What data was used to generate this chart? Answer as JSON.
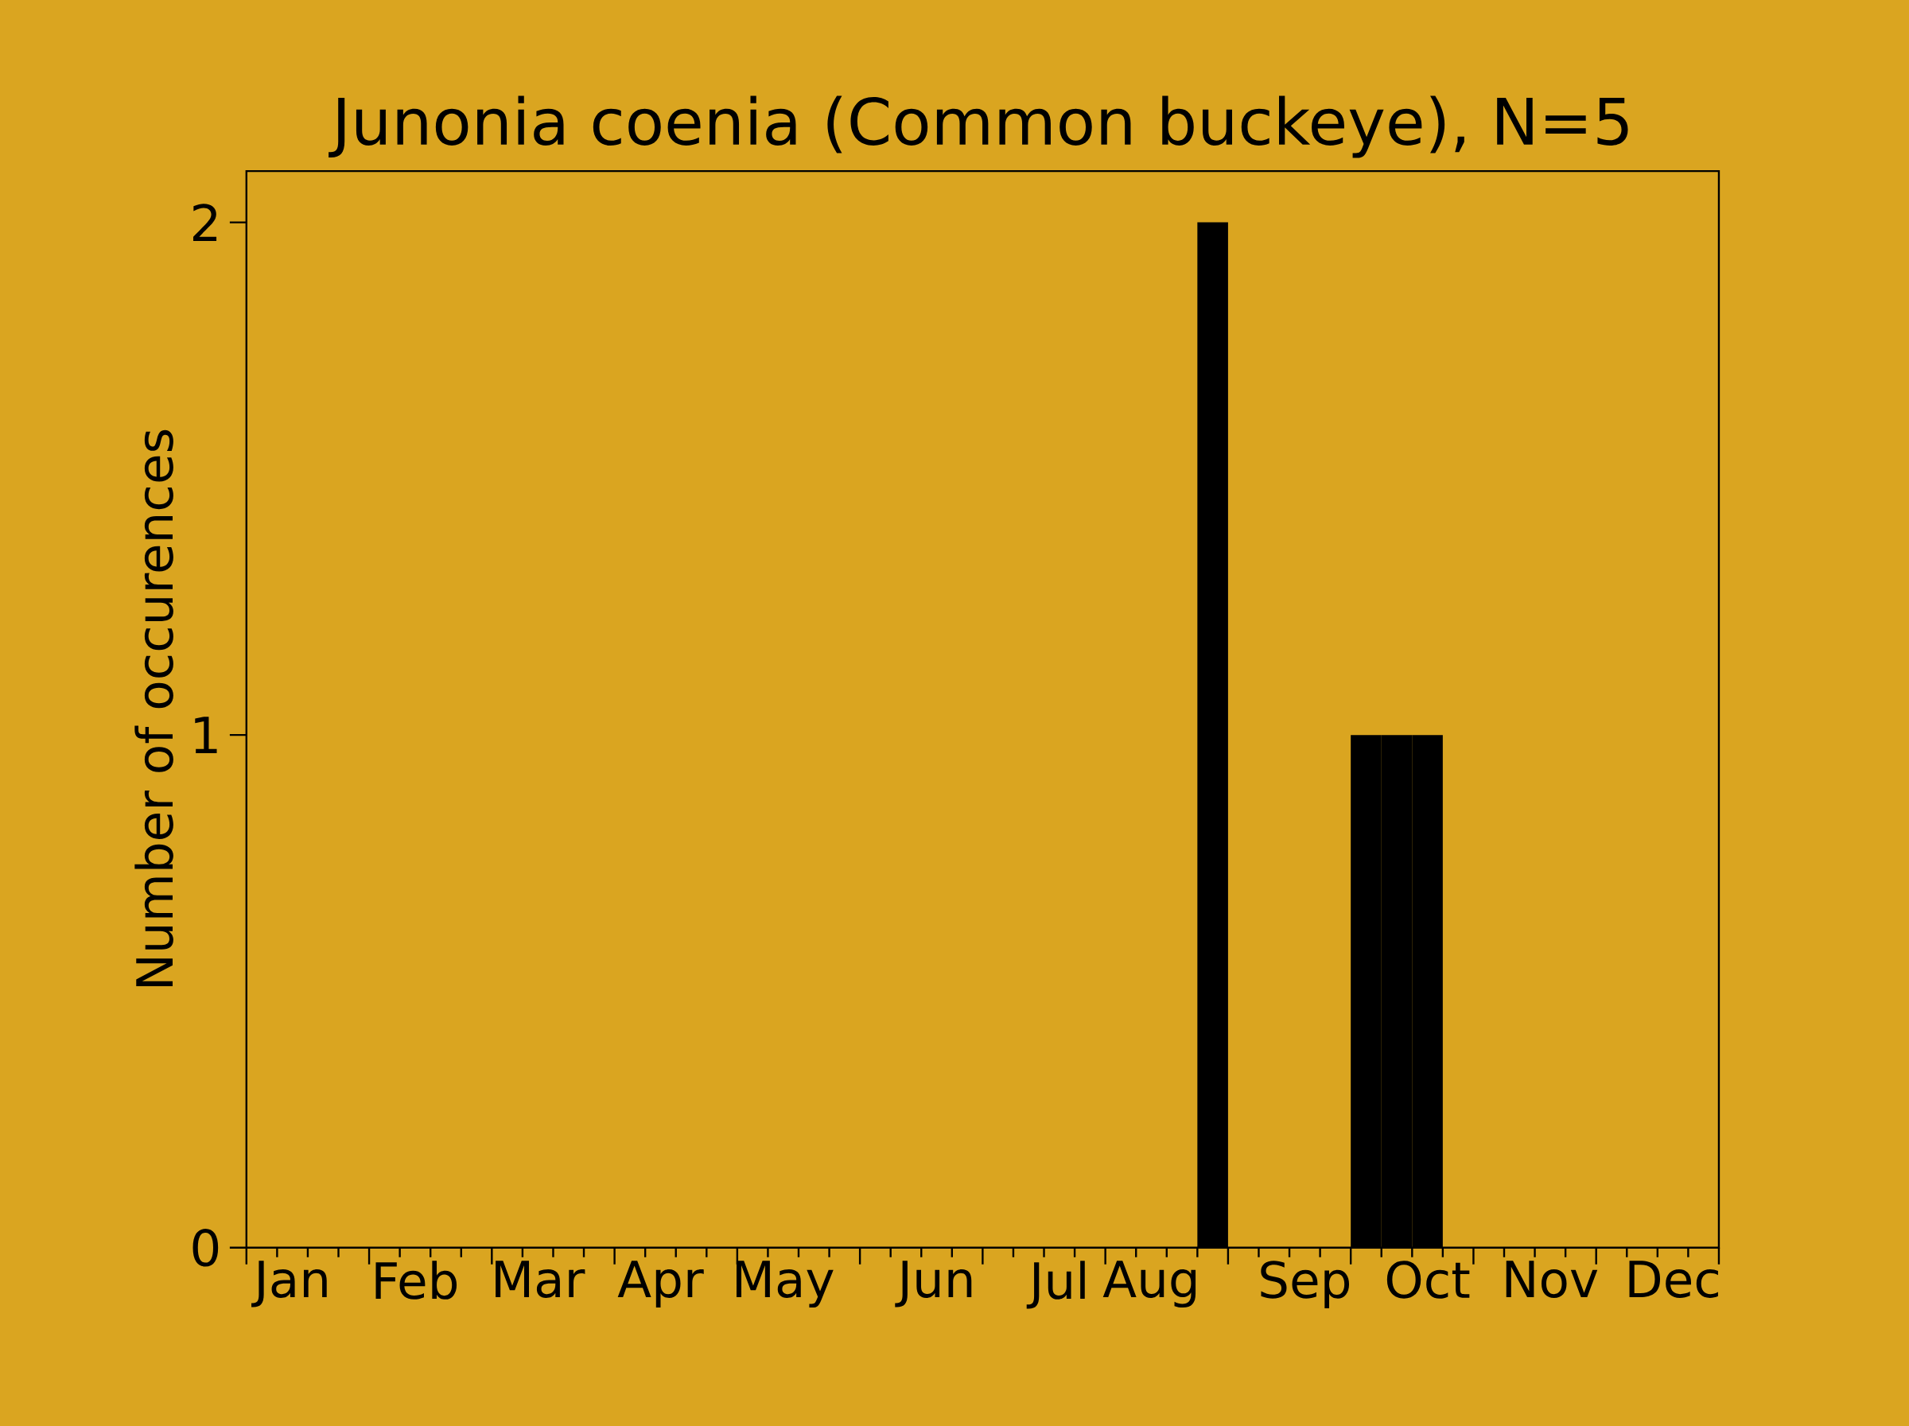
{
  "chart_data": {
    "type": "bar",
    "title": "Junonia coenia (Common buckeye), N=5",
    "ylabel": "Number of occurences",
    "categories": [
      null,
      "Jan",
      null,
      null,
      null,
      "Feb",
      null,
      null,
      null,
      "Mar",
      null,
      null,
      null,
      "Apr",
      null,
      null,
      null,
      "May",
      null,
      null,
      null,
      null,
      "Jun",
      null,
      null,
      null,
      "Jul",
      null,
      null,
      "Aug",
      null,
      null,
      null,
      null,
      "Sep",
      null,
      null,
      null,
      "Oct",
      null,
      null,
      null,
      "Nov",
      null,
      null,
      null,
      "Dec",
      null
    ],
    "values": [
      0,
      0,
      0,
      0,
      0,
      0,
      0,
      0,
      0,
      0,
      0,
      0,
      0,
      0,
      0,
      0,
      0,
      0,
      0,
      0,
      0,
      0,
      0,
      0,
      0,
      0,
      0,
      0,
      0,
      0,
      0,
      2,
      0,
      0,
      0,
      0,
      1,
      1,
      1,
      0,
      0,
      0,
      0,
      0,
      0,
      0,
      0,
      0
    ],
    "color": "#000000",
    "ylim": [
      0,
      2.1
    ],
    "yticks": [
      0,
      1,
      2
    ]
  }
}
